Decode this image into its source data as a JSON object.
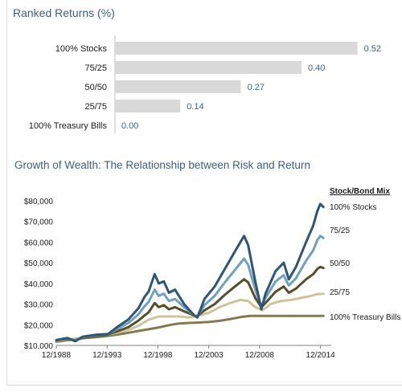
{
  "bar_title": "Ranked Returns (%)",
  "line_title": "Growth of Wealth: The Relationship between Risk and Return",
  "chart_data": [
    {
      "type": "bar",
      "orientation": "horizontal",
      "title": "Ranked Returns (%)",
      "categories": [
        "100% Stocks",
        "75/25",
        "50/50",
        "25/75",
        "100% Treasury Bills"
      ],
      "values": [
        0.52,
        0.4,
        0.27,
        0.14,
        0.0
      ],
      "value_labels": [
        "0.52",
        "0.40",
        "0.27",
        "0.14",
        "0.00"
      ],
      "xlim": [
        0,
        0.55
      ],
      "bar_color": "#d9d9d9",
      "label_color": "#3d5f7a",
      "grid": false
    },
    {
      "type": "line",
      "title": "Growth of Wealth: The Relationship between Risk and Return",
      "legend_title": "Stock/Bond Mix",
      "legend_position": "right",
      "x_ticks": [
        "12/1988",
        "12/1993",
        "12/1998",
        "12/2003",
        "12/2008",
        "12/2014"
      ],
      "x_range": [
        1988.917,
        2015.5
      ],
      "y_ticks": [
        "$10,000",
        "$20,000",
        "$30,000",
        "$40,000",
        "$50,000",
        "$60,000",
        "$70,000",
        "$80,000"
      ],
      "ylim": [
        10000,
        80000
      ],
      "grid": false,
      "series": [
        {
          "name": "100% Stocks",
          "color": "#2e5573",
          "x": [
            1988.92,
            1990.0,
            1990.8,
            1991.5,
            1992.9,
            1994.0,
            1995.0,
            1996.0,
            1997.0,
            1997.6,
            1998.0,
            1998.6,
            1999.0,
            1999.5,
            2000.0,
            2000.6,
            2001.5,
            2002.5,
            2002.8,
            2003.5,
            2004.5,
            2005.5,
            2006.5,
            2007.4,
            2007.8,
            2008.5,
            2009.1,
            2009.5,
            2010.5,
            2011.3,
            2011.8,
            2012.5,
            2013.5,
            2014.2,
            2014.6,
            2014.9,
            2015.2
          ],
          "y": [
            12600,
            13600,
            12000,
            14200,
            15200,
            15500,
            19200,
            22500,
            28000,
            33500,
            36000,
            44500,
            40000,
            41000,
            35500,
            37000,
            30000,
            24500,
            23500,
            32500,
            38500,
            47000,
            55500,
            63000,
            58500,
            41000,
            27500,
            35000,
            46000,
            50000,
            42000,
            48000,
            60000,
            68000,
            75000,
            78500,
            77000
          ]
        },
        {
          "name": "75/25",
          "color": "#6fa0bd",
          "x": [
            1988.92,
            1990.0,
            1990.8,
            1991.5,
            1992.9,
            1994.0,
            1995.0,
            1996.0,
            1997.0,
            1997.6,
            1998.0,
            1998.6,
            1999.0,
            1999.5,
            2000.0,
            2000.6,
            2001.5,
            2002.5,
            2002.8,
            2003.5,
            2004.5,
            2005.5,
            2006.5,
            2007.4,
            2007.8,
            2008.5,
            2009.1,
            2009.5,
            2010.5,
            2011.3,
            2011.8,
            2012.5,
            2013.5,
            2014.2,
            2014.6,
            2014.9,
            2015.2
          ],
          "y": [
            12500,
            13400,
            12300,
            14000,
            15000,
            15500,
            18200,
            20800,
            25000,
            29000,
            31000,
            37000,
            34000,
            35000,
            31500,
            32500,
            28500,
            24500,
            24000,
            29500,
            34000,
            40500,
            46500,
            52000,
            49000,
            37000,
            29000,
            33000,
            41000,
            44000,
            39000,
            42500,
            51000,
            56000,
            61000,
            63000,
            62000
          ]
        },
        {
          "name": "50/50",
          "color": "#564e2a",
          "x": [
            1988.92,
            1990.0,
            1990.8,
            1991.5,
            1992.9,
            1994.0,
            1995.0,
            1996.0,
            1997.0,
            1997.6,
            1998.0,
            1998.6,
            1999.0,
            1999.5,
            2000.0,
            2000.6,
            2001.5,
            2002.5,
            2002.8,
            2003.5,
            2004.5,
            2005.5,
            2006.5,
            2007.4,
            2007.8,
            2008.5,
            2009.1,
            2009.5,
            2010.5,
            2011.3,
            2011.8,
            2012.5,
            2013.5,
            2014.2,
            2014.6,
            2014.9,
            2015.2
          ],
          "y": [
            12400,
            13100,
            12500,
            13700,
            14600,
            15300,
            17000,
            18800,
            22000,
            24500,
            26000,
            30500,
            28500,
            29500,
            27500,
            28500,
            26500,
            24500,
            24200,
            27000,
            30000,
            34500,
            38500,
            42000,
            40500,
            33000,
            28500,
            30500,
            36000,
            38500,
            35500,
            37500,
            42000,
            44500,
            47000,
            48000,
            47500
          ]
        },
        {
          "name": "25/75",
          "color": "#cdc49a",
          "x": [
            1988.92,
            1990.0,
            1991.0,
            1992.0,
            1993.0,
            1994.0,
            1995.0,
            1996.0,
            1997.0,
            1998.0,
            1999.0,
            2000.0,
            2001.0,
            2002.0,
            2003.0,
            2004.0,
            2005.0,
            2006.0,
            2007.0,
            2007.8,
            2008.5,
            2009.2,
            2010.0,
            2011.0,
            2012.0,
            2013.0,
            2014.0,
            2014.6,
            2015.2
          ],
          "y": [
            12300,
            12900,
            13400,
            14200,
            15000,
            15200,
            16300,
            17500,
            19500,
            22500,
            24000,
            24000,
            24000,
            23500,
            24500,
            26000,
            28500,
            30500,
            32000,
            31500,
            28500,
            27000,
            30000,
            31500,
            32000,
            33000,
            34000,
            34800,
            35000
          ]
        },
        {
          "name": "100% Treasury Bills",
          "color": "#847a4d",
          "x": [
            1988.92,
            1990.0,
            1991.0,
            1992.0,
            1993.0,
            1994.0,
            1995.0,
            1996.0,
            1997.0,
            1998.0,
            1999.0,
            2000.0,
            2001.0,
            2002.0,
            2003.0,
            2004.0,
            2005.0,
            2006.0,
            2007.0,
            2008.0,
            2009.0,
            2010.0,
            2011.0,
            2012.0,
            2013.0,
            2014.0,
            2015.2
          ],
          "y": [
            11800,
            12500,
            13200,
            13700,
            14100,
            14600,
            15300,
            16100,
            17000,
            17800,
            18700,
            19800,
            20600,
            20900,
            21100,
            21400,
            21900,
            22700,
            23700,
            24300,
            24300,
            24300,
            24300,
            24300,
            24300,
            24300,
            24300
          ]
        }
      ]
    }
  ]
}
